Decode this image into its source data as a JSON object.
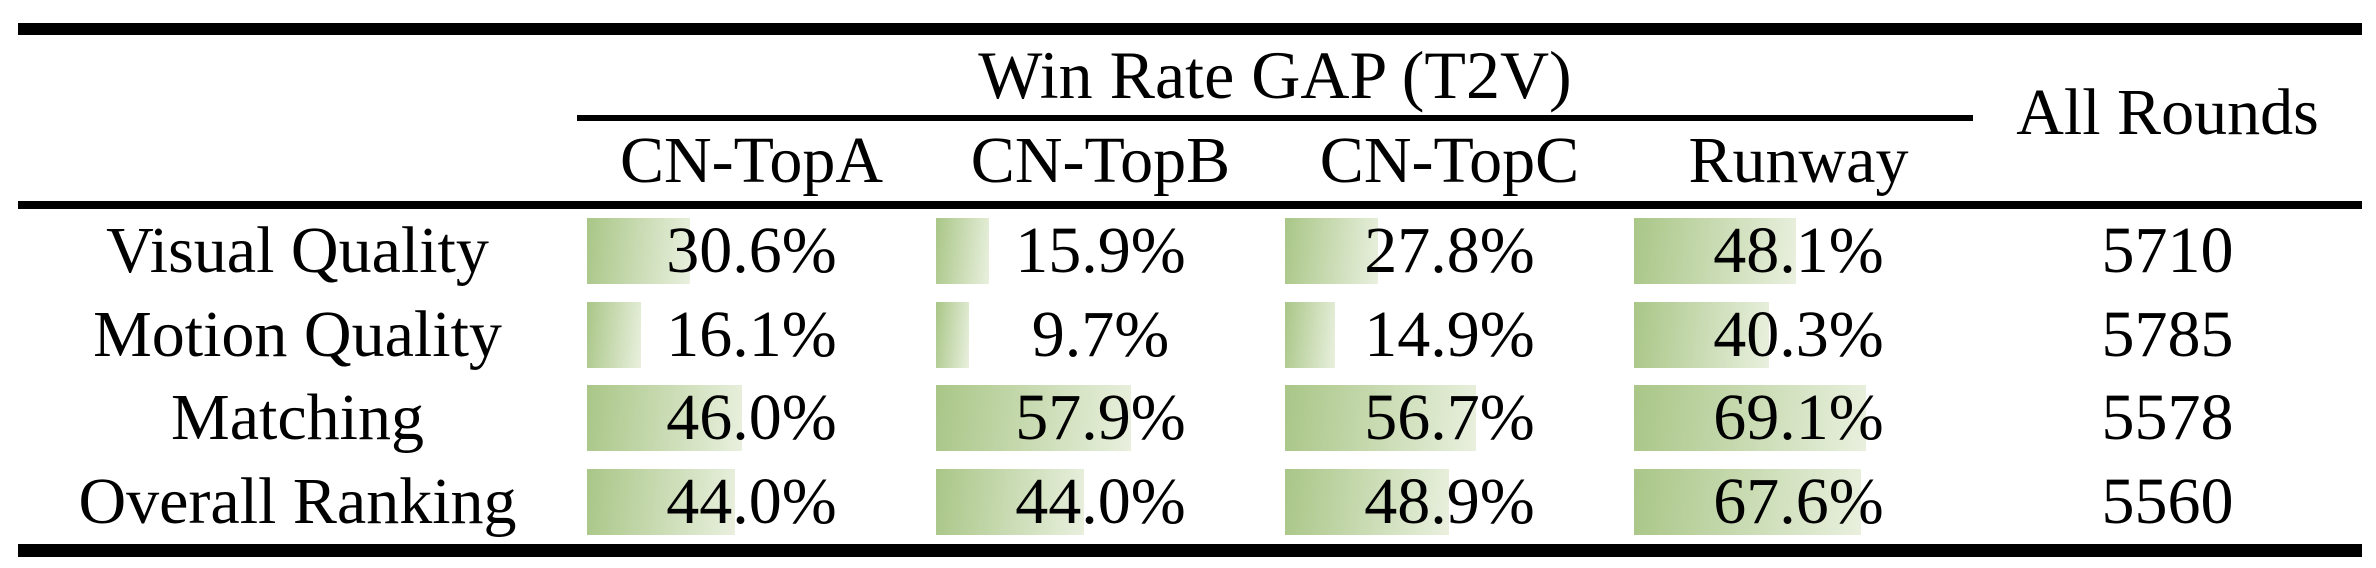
{
  "table": {
    "title": "Win Rate GAP (T2V)",
    "all_rounds_header": "All Rounds",
    "columns": [
      "CN-TopA",
      "CN-TopB",
      "CN-TopC",
      "Runway"
    ],
    "rows": [
      {
        "label": "Visual Quality",
        "cells": [
          {
            "pct": 30.6,
            "text": "30.6%"
          },
          {
            "pct": 15.9,
            "text": "15.9%"
          },
          {
            "pct": 27.8,
            "text": "27.8%"
          },
          {
            "pct": 48.1,
            "text": "48.1%"
          }
        ],
        "all_rounds": "5710"
      },
      {
        "label": "Motion Quality",
        "cells": [
          {
            "pct": 16.1,
            "text": "16.1%"
          },
          {
            "pct": 9.7,
            "text": "9.7%"
          },
          {
            "pct": 14.9,
            "text": "14.9%"
          },
          {
            "pct": 40.3,
            "text": "40.3%"
          }
        ],
        "all_rounds": "5785"
      },
      {
        "label": "Matching",
        "cells": [
          {
            "pct": 46.0,
            "text": "46.0%"
          },
          {
            "pct": 57.9,
            "text": "57.9%"
          },
          {
            "pct": 56.7,
            "text": "56.7%"
          },
          {
            "pct": 69.1,
            "text": "69.1%"
          }
        ],
        "all_rounds": "5578"
      },
      {
        "label": "Overall Ranking",
        "cells": [
          {
            "pct": 44.0,
            "text": "44.0%"
          },
          {
            "pct": 44.0,
            "text": "44.0%"
          },
          {
            "pct": 48.9,
            "text": "48.9%"
          },
          {
            "pct": 67.6,
            "text": "67.6%"
          }
        ],
        "all_rounds": "5560"
      }
    ],
    "colors": {
      "bar_gradient_start": "#a9c687",
      "bar_gradient_end": "#e9f0de",
      "rule": "#000000"
    }
  },
  "chart_data": {
    "type": "table",
    "title": "Win Rate GAP (T2V)",
    "categories": [
      "Visual Quality",
      "Motion Quality",
      "Matching",
      "Overall Ranking"
    ],
    "series": [
      {
        "name": "CN-TopA",
        "values": [
          30.6,
          16.1,
          46.0,
          44.0
        ],
        "unit": "%"
      },
      {
        "name": "CN-TopB",
        "values": [
          15.9,
          9.7,
          57.9,
          44.0
        ],
        "unit": "%"
      },
      {
        "name": "CN-TopC",
        "values": [
          27.8,
          14.9,
          56.7,
          48.9
        ],
        "unit": "%"
      },
      {
        "name": "Runway",
        "values": [
          48.1,
          40.3,
          69.1,
          67.6
        ],
        "unit": "%"
      },
      {
        "name": "All Rounds",
        "values": [
          5710,
          5785,
          5578,
          5560
        ],
        "unit": "rounds"
      }
    ],
    "bar_scale": "in-cell data bars, width proportional to percent (100% ≈ 336px)",
    "layout_hints": {
      "grid": false,
      "style": "booktabs table with green gradient data bars"
    }
  }
}
